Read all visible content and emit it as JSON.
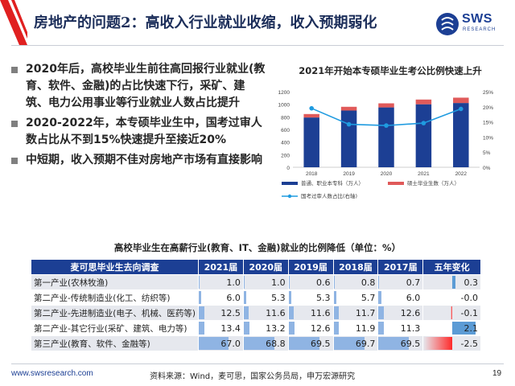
{
  "header": {
    "title": "房地产的问题2：高收入行业就业收缩，收入预期弱化",
    "logo_text": "SWS",
    "logo_sub": "RESEARCH"
  },
  "bullets": [
    "2020年后，高校毕业生前往高回报行业就业(教育、软件、金融)的占比快速下行，采矿、建筑、电力公用事业等行业就业人数占比提升",
    "2020-2022年，本专硕毕业生中，国考过审人数占比从不到15%快速提升至接近20%",
    "中短期，收入预期不佳对房地产市场有直接影响"
  ],
  "chart_data": {
    "type": "bar",
    "title": "2021年开始本专硕毕业生考公比例快速上升",
    "categories": [
      "2018",
      "2019",
      "2020",
      "2021",
      "2022"
    ],
    "series": [
      {
        "name": "普通、职业本专科（万人）",
        "kind": "bar",
        "axis": "left",
        "color": "#1c3f94",
        "values": [
          790,
          900,
          950,
          1000,
          1020
        ]
      },
      {
        "name": "硕士毕业生数（万人）",
        "kind": "bar",
        "axis": "left",
        "color": "#e05a5a",
        "values": [
          55,
          60,
          65,
          75,
          85
        ]
      },
      {
        "name": "国考过审人数占比(右轴)",
        "kind": "line",
        "axis": "right",
        "color": "#1f9be0",
        "values": [
          19.5,
          14.2,
          13.8,
          14.6,
          19.3
        ]
      }
    ],
    "ylim_left": [
      0,
      1200
    ],
    "yticks_left": [
      0,
      200,
      400,
      600,
      800,
      1000,
      1200
    ],
    "ylim_right": [
      0,
      25
    ],
    "yticks_right": [
      "0%",
      "5%",
      "10%",
      "15%",
      "20%",
      "25%"
    ],
    "legend_position": "bottom"
  },
  "table": {
    "title": "高校毕业生在高薪行业(教育、IT、金融)就业的比例降低（单位：%）",
    "headers": [
      "麦可思毕业生去向调查",
      "2021届",
      "2020届",
      "2019届",
      "2018届",
      "2017届",
      "五年变化"
    ],
    "rows": [
      {
        "label": "第一产业(农林牧渔)",
        "values": [
          1.0,
          1.0,
          0.6,
          0.8,
          0.7
        ],
        "display": [
          "1.0",
          "1.0",
          "0.6",
          "0.8",
          "0.7"
        ],
        "change": 0.3,
        "change_display": "0.3"
      },
      {
        "label": "第二产业-传统制造业(化工、纺织等)",
        "values": [
          6.0,
          5.3,
          5.3,
          5.7,
          6.0
        ],
        "display": [
          "6.0",
          "5.3",
          "5.3",
          "5.7",
          "6.0"
        ],
        "change": 0.0,
        "change_display": "-0.0"
      },
      {
        "label": "第二产业-先进制造业(电子、机械、医药等)",
        "values": [
          12.5,
          11.6,
          11.6,
          11.7,
          12.6
        ],
        "display": [
          "12.5",
          "11.6",
          "11.6",
          "11.7",
          "12.6"
        ],
        "change": -0.1,
        "change_display": "-0.1"
      },
      {
        "label": "第二产业-其它行业(采矿、建筑、电力等)",
        "values": [
          13.4,
          13.2,
          12.6,
          11.9,
          11.3
        ],
        "display": [
          "13.4",
          "13.2",
          "12.6",
          "11.9",
          "11.3"
        ],
        "change": 2.1,
        "change_display": "2.1"
      },
      {
        "label": "第三产业(教育、软件、金融等)",
        "values": [
          67.0,
          68.8,
          69.5,
          69.7,
          69.5
        ],
        "display": [
          "67.0",
          "68.8",
          "69.5",
          "69.7",
          "69.5"
        ],
        "change": -2.5,
        "change_display": "-2.5"
      }
    ],
    "bar_color": "#8fb4e3",
    "pos_change_color": "#5b9bd5",
    "neg_change_color": "#ff2a2a"
  },
  "footer": {
    "url": "www.swsresearch.com",
    "source": "资料来源：Wind，麦可思，国家公务员局，申万宏源研究",
    "page": "19"
  }
}
